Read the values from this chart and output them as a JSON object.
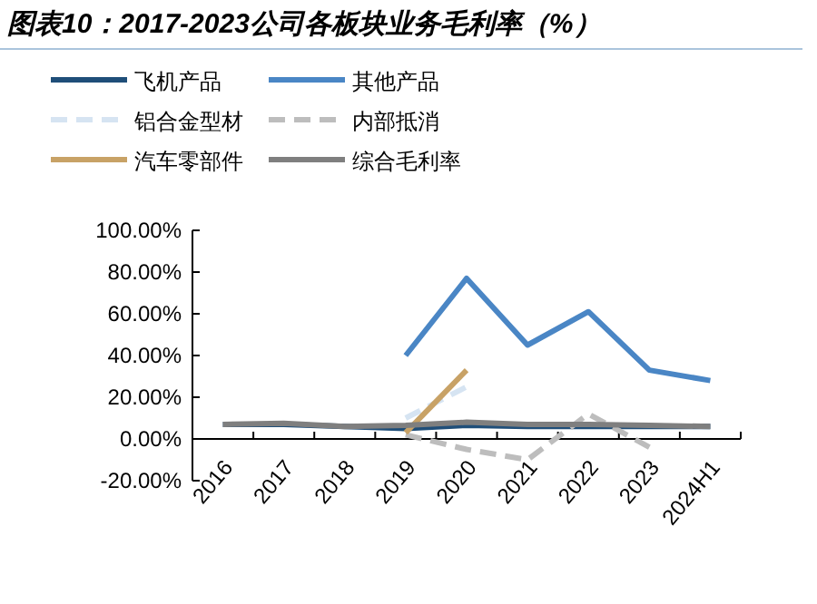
{
  "chart_data": {
    "type": "line",
    "title": "图表10：2017-2023公司各板块业务毛利率（%）",
    "categories": [
      "2016",
      "2017",
      "2018",
      "2019",
      "2020",
      "2021",
      "2022",
      "2023",
      "2024H1"
    ],
    "ylim": [
      -20,
      100
    ],
    "yticks": [
      {
        "value": -20,
        "label": "-20.00%"
      },
      {
        "value": 0,
        "label": "0.00%"
      },
      {
        "value": 20,
        "label": "20.00%"
      },
      {
        "value": 40,
        "label": "40.00%"
      },
      {
        "value": 60,
        "label": "60.00%"
      },
      {
        "value": 80,
        "label": "80.00%"
      },
      {
        "value": 100,
        "label": "100.00%"
      }
    ],
    "legend": "top",
    "grid": false,
    "marker": "none",
    "series": [
      {
        "name": "飞机产品",
        "color": "#1f4e79",
        "values": [
          7,
          7,
          6,
          5,
          6.5,
          6,
          6,
          6,
          6
        ]
      },
      {
        "name": "其他产品",
        "color": "#4a86c5",
        "values": [
          null,
          null,
          null,
          40,
          77,
          45,
          61,
          33,
          28
        ]
      },
      {
        "name": "铝合金型材",
        "color": "#d6e4f2",
        "line_style": "dashed",
        "values": [
          null,
          null,
          null,
          10,
          25,
          null,
          null,
          null,
          null
        ]
      },
      {
        "name": "内部抵消",
        "color": "#bdbdbd",
        "line_style": "dashed",
        "values": [
          null,
          null,
          null,
          2,
          -5,
          -10,
          12,
          -4,
          null
        ]
      },
      {
        "name": "汽车零部件",
        "color": "#c8a266",
        "values": [
          null,
          null,
          null,
          3,
          33,
          null,
          null,
          null,
          null
        ]
      },
      {
        "name": "综合毛利率",
        "color": "#7f7f7f",
        "values": [
          7,
          7.5,
          6,
          6.5,
          8,
          7,
          7,
          6.5,
          6
        ]
      }
    ]
  }
}
